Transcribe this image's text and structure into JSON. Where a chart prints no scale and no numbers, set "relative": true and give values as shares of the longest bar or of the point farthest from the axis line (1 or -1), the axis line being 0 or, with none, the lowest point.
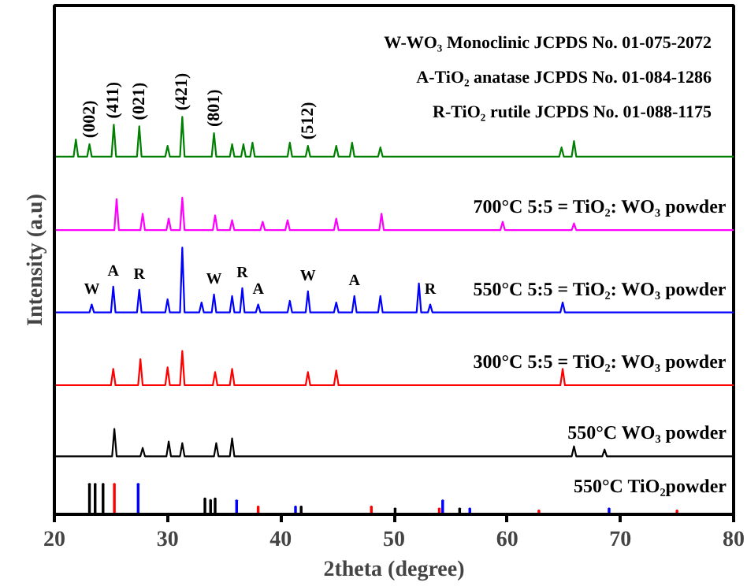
{
  "chart_data": {
    "type": "line",
    "relative": true,
    "xlabel": "2theta (degree)",
    "ylabel": "Intensity (a.u)",
    "xlim": [
      20,
      80
    ],
    "xticks": [
      20,
      30,
      40,
      50,
      60,
      70,
      80
    ],
    "grid": false,
    "legend": false,
    "tick_labels": "x",
    "annotations": [
      "W-WO₃ Monoclinic JCPDS No. 01-075-2072",
      "A-TiO₂ anatase JCPDS No. 01-084-1286",
      "R-TiO₂ rutile JCPDS No. 01-088-1175",
      "550°C TiO₂powder",
      {
        "text": "(002)",
        "x": 23.1,
        "y": 0.931
      },
      {
        "text": "(411)",
        "x": 25.25,
        "y": 0.98
      },
      {
        "text": "(021)",
        "x": 27.5,
        "y": 0.976
      },
      {
        "text": "(421)",
        "x": 31.3,
        "y": 1.0
      },
      {
        "text": "(801)",
        "x": 34.1,
        "y": 0.959
      },
      {
        "text": "(512)",
        "x": 42.4,
        "y": 0.927
      },
      {
        "text": "W",
        "x": 23.3,
        "y": 0.528
      },
      {
        "text": "A",
        "x": 25.2,
        "y": 0.573
      },
      {
        "text": "R",
        "x": 27.5,
        "y": 0.565
      },
      {
        "text": "W",
        "x": 34.1,
        "y": 0.553
      },
      {
        "text": "R",
        "x": 36.6,
        "y": 0.569
      },
      {
        "text": "A",
        "x": 38.0,
        "y": 0.528
      },
      {
        "text": "W",
        "x": 42.4,
        "y": 0.561
      },
      {
        "text": "A",
        "x": 46.5,
        "y": 0.549
      },
      {
        "text": "R",
        "x": 53.2,
        "y": 0.528
      }
    ],
    "series": [
      {
        "color": "#008000",
        "x": [
          20,
          21.7,
          21.9,
          22.1,
          22.9,
          23.1,
          23.3,
          25.05,
          25.25,
          25.45,
          27.3,
          27.5,
          27.7,
          29.8,
          30.0,
          30.2,
          31.1,
          31.3,
          31.5,
          33.9,
          34.1,
          34.3,
          35.5,
          35.7,
          35.9,
          36.5,
          36.7,
          36.9,
          37.3,
          37.5,
          37.7,
          40.6,
          40.8,
          41.0,
          42.2,
          42.4,
          42.6,
          44.7,
          44.9,
          45.1,
          46.1,
          46.3,
          46.5,
          48.6,
          48.8,
          49.0,
          64.6,
          64.8,
          65.0,
          65.7,
          65.9,
          66.1,
          80
        ],
        "values": [
          0.9,
          0.9,
          0.943,
          0.9,
          0.9,
          0.931,
          0.9,
          0.9,
          0.98,
          0.9,
          0.9,
          0.976,
          0.9,
          0.9,
          0.927,
          0.9,
          0.9,
          1.0,
          0.9,
          0.9,
          0.959,
          0.9,
          0.9,
          0.931,
          0.9,
          0.9,
          0.931,
          0.9,
          0.9,
          0.935,
          0.9,
          0.9,
          0.935,
          0.9,
          0.9,
          0.927,
          0.9,
          0.9,
          0.927,
          0.9,
          0.9,
          0.935,
          0.9,
          0.9,
          0.923,
          0.9,
          0.9,
          0.923,
          0.9,
          0.9,
          0.939,
          0.9,
          0.9
        ]
      },
      {
        "name": "700°C 5:5 = TiO₂: WO₃ powder",
        "color": "#ff00ff",
        "x": [
          20,
          25.3,
          25.5,
          25.7,
          27.6,
          27.8,
          28.0,
          29.9,
          30.1,
          30.3,
          31.1,
          31.3,
          31.5,
          34.0,
          34.2,
          34.4,
          35.5,
          35.7,
          35.9,
          38.2,
          38.4,
          38.6,
          40.4,
          40.6,
          40.8,
          44.7,
          44.9,
          45.1,
          48.7,
          48.9,
          49.1,
          59.4,
          59.6,
          59.8,
          65.7,
          65.9,
          66.1,
          80
        ],
        "values": [
          0.715,
          0.715,
          0.793,
          0.715,
          0.715,
          0.756,
          0.715,
          0.715,
          0.744,
          0.715,
          0.715,
          0.797,
          0.715,
          0.715,
          0.752,
          0.715,
          0.715,
          0.74,
          0.715,
          0.715,
          0.736,
          0.715,
          0.715,
          0.74,
          0.715,
          0.715,
          0.744,
          0.715,
          0.715,
          0.756,
          0.715,
          0.715,
          0.736,
          0.715,
          0.715,
          0.732,
          0.715,
          0.715
        ]
      },
      {
        "name": "550°C 5:5 = TiO₂: WO₃ powder",
        "color": "#0000ff",
        "x": [
          20,
          23.1,
          23.3,
          23.5,
          25.0,
          25.2,
          25.4,
          27.3,
          27.5,
          27.7,
          29.8,
          30.0,
          30.2,
          31.1,
          31.3,
          31.5,
          32.8,
          33.0,
          33.2,
          33.9,
          34.1,
          34.3,
          35.5,
          35.7,
          35.9,
          36.4,
          36.6,
          36.8,
          37.8,
          38.0,
          38.2,
          40.6,
          40.8,
          41.0,
          42.2,
          42.4,
          42.6,
          44.7,
          44.9,
          45.1,
          46.3,
          46.5,
          46.7,
          48.6,
          48.8,
          49.0,
          52.0,
          52.2,
          52.4,
          53.0,
          53.2,
          53.4,
          64.7,
          64.9,
          65.1,
          80
        ],
        "values": [
          0.508,
          0.508,
          0.528,
          0.508,
          0.508,
          0.573,
          0.508,
          0.508,
          0.565,
          0.508,
          0.508,
          0.541,
          0.508,
          0.508,
          0.671,
          0.508,
          0.508,
          0.533,
          0.508,
          0.508,
          0.553,
          0.508,
          0.508,
          0.549,
          0.508,
          0.508,
          0.569,
          0.508,
          0.508,
          0.528,
          0.508,
          0.508,
          0.537,
          0.508,
          0.508,
          0.561,
          0.508,
          0.508,
          0.533,
          0.508,
          0.508,
          0.549,
          0.508,
          0.508,
          0.549,
          0.508,
          0.508,
          0.581,
          0.508,
          0.508,
          0.528,
          0.508,
          0.508,
          0.533,
          0.508,
          0.508
        ]
      },
      {
        "name": "300°C 5:5 = TiO₂: WO₃ powder",
        "color": "#ff0000",
        "x": [
          20,
          25.0,
          25.2,
          25.4,
          27.4,
          27.6,
          27.8,
          29.8,
          30.0,
          30.2,
          31.1,
          31.3,
          31.5,
          34.0,
          34.2,
          34.4,
          35.5,
          35.7,
          35.9,
          42.2,
          42.4,
          42.6,
          44.7,
          44.9,
          45.1,
          64.7,
          64.9,
          65.1,
          80
        ],
        "values": [
          0.325,
          0.325,
          0.366,
          0.325,
          0.325,
          0.39,
          0.325,
          0.325,
          0.37,
          0.325,
          0.325,
          0.411,
          0.325,
          0.325,
          0.358,
          0.325,
          0.325,
          0.366,
          0.325,
          0.325,
          0.358,
          0.325,
          0.325,
          0.362,
          0.325,
          0.325,
          0.366,
          0.325,
          0.325
        ]
      },
      {
        "name": "550°C WO₃ powder",
        "color": "#000000",
        "x": [
          20,
          25.1,
          25.3,
          25.5,
          27.6,
          27.8,
          28.0,
          29.9,
          30.1,
          30.3,
          31.1,
          31.3,
          31.5,
          34.1,
          34.3,
          34.5,
          35.5,
          35.7,
          35.9,
          65.7,
          65.9,
          66.1,
          68.4,
          68.6,
          68.8,
          80
        ],
        "values": [
          0.146,
          0.146,
          0.215,
          0.146,
          0.146,
          0.167,
          0.146,
          0.146,
          0.183,
          0.146,
          0.146,
          0.179,
          0.146,
          0.146,
          0.179,
          0.146,
          0.146,
          0.191,
          0.146,
          0.146,
          0.171,
          0.146,
          0.146,
          0.163,
          0.146,
          0.146
        ]
      },
      {
        "type": "bar",
        "color": "#000000",
        "x": [
          23.1,
          23.6,
          24.3,
          33.3,
          33.8,
          34.2,
          41.8,
          50.1,
          55.8
        ],
        "values": [
          0.077,
          0.077,
          0.077,
          0.04,
          0.036,
          0.04,
          0.02,
          0.015,
          0.015
        ]
      },
      {
        "type": "bar",
        "color": "#ff0000",
        "x": [
          25.3,
          38.0,
          48.0,
          54.0,
          62.8,
          75.0
        ],
        "values": [
          0.077,
          0.02,
          0.02,
          0.015,
          0.01,
          0.01
        ]
      },
      {
        "type": "bar",
        "color": "#0000ff",
        "x": [
          27.4,
          36.1,
          41.3,
          54.3,
          56.7,
          69.0
        ],
        "values": [
          0.077,
          0.035,
          0.02,
          0.035,
          0.015,
          0.015
        ]
      }
    ]
  }
}
